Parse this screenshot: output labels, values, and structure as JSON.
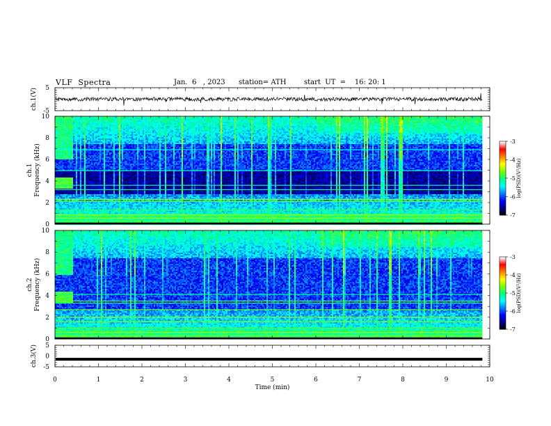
{
  "header": {
    "title": "VLF  Spectra",
    "date": "Jan.  6   , 2023",
    "station": "station= ATH",
    "start_ut": "start  UT  =    16: 20: 1"
  },
  "colors": {
    "waveform": "#000000",
    "axis": "#000000",
    "colormap": [
      "#000000",
      "#00007f",
      "#0000ff",
      "#0080ff",
      "#00ffff",
      "#00ff80",
      "#80ff00",
      "#ffff00",
      "#ff8000",
      "#ff0000",
      "#ffffff"
    ]
  },
  "chart_data": [
    {
      "id": "ch1-waveform",
      "type": "line",
      "ylabel": "ch.1(V)",
      "ylim": [
        -5,
        5
      ],
      "y_ticks": [
        "5",
        "-5"
      ],
      "xlim": [
        0,
        10
      ],
      "data_end_min": 9.83,
      "mean": 0,
      "noise_amplitude_v": 1.2
    },
    {
      "id": "ch1-spectrogram",
      "type": "heatmap",
      "ylabel": "ch.1\nFrequency (kHz)",
      "ylim": [
        0,
        10
      ],
      "y_ticks": [
        "0",
        "2",
        "4",
        "6",
        "8",
        "10"
      ],
      "xlim": [
        0,
        10
      ],
      "data_end_min": 9.83,
      "colorbar": {
        "label": "log(PSD)(V²/Hz)",
        "range": [
          -7,
          -3
        ],
        "ticks": [
          "-3",
          "-4",
          "-5",
          "-6",
          "-7"
        ]
      }
    },
    {
      "id": "ch2-spectrogram",
      "type": "heatmap",
      "ylabel": "ch.2\nFrequency (kHz)",
      "ylim": [
        0,
        10
      ],
      "y_ticks": [
        "0",
        "2",
        "4",
        "6",
        "8",
        "10"
      ],
      "xlim": [
        0,
        10
      ],
      "data_end_min": 9.83,
      "colorbar": {
        "label": "log(PSD)(V²/Hz)",
        "range": [
          -7,
          -3
        ],
        "ticks": [
          "-3",
          "-4",
          "-5",
          "-6",
          "-7"
        ]
      }
    },
    {
      "id": "ch3-waveform",
      "type": "line",
      "ylabel": "ch.3(V)",
      "ylim": [
        -5,
        5
      ],
      "y_ticks": [
        "5",
        "0",
        "-5"
      ],
      "xlim": [
        0,
        10
      ],
      "data_end_min": 9.83,
      "constant_value_v": -1.5,
      "xlabel": "Time  (min)",
      "x_ticks": [
        "0",
        "1",
        "2",
        "3",
        "4",
        "5",
        "6",
        "7",
        "8",
        "9",
        "10"
      ]
    }
  ]
}
